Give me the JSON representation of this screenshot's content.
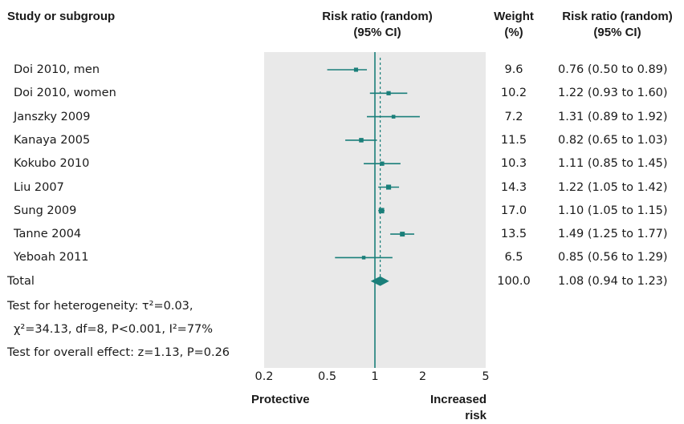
{
  "headers": {
    "study": "Study or subgroup",
    "plot_title_line1": "Risk ratio (random)",
    "plot_title_line2": "(95% CI)",
    "weight_line1": "Weight",
    "weight_line2": "(%)",
    "ci_line1": "Risk ratio (random)",
    "ci_line2": "(95% CI)"
  },
  "stats": {
    "heterogeneity_line1": "Test for heterogeneity: τ²=0.03,",
    "heterogeneity_line2": "χ²=34.13, df=8, P<0.001, I²=77%",
    "overall_effect": "Test for overall effect: z=1.13, P=0.26"
  },
  "direction_labels": {
    "left": "Protective",
    "right_line1": "Increased",
    "right_line2": "risk"
  },
  "colors": {
    "marker": "#1a7f7a",
    "panel_bg": "#e9e9e9",
    "text": "#1a1a1a"
  },
  "chart_data": {
    "type": "forest",
    "scale": "log",
    "xlim": [
      0.2,
      5
    ],
    "xticks": [
      0.2,
      0.5,
      1,
      2,
      5
    ],
    "xtick_labels": [
      "0.2",
      "0.5",
      "1",
      "2",
      "5"
    ],
    "null_value": 1,
    "studies": [
      {
        "name": "Doi 2010, men",
        "rr": 0.76,
        "lo": 0.5,
        "hi": 0.89,
        "weight": "9.6",
        "ci_text": "0.76 (0.50 to 0.89)"
      },
      {
        "name": "Doi 2010, women",
        "rr": 1.22,
        "lo": 0.93,
        "hi": 1.6,
        "weight": "10.2",
        "ci_text": "1.22 (0.93 to 1.60)"
      },
      {
        "name": "Janszky 2009",
        "rr": 1.31,
        "lo": 0.89,
        "hi": 1.92,
        "weight": "7.2",
        "ci_text": "1.31 (0.89 to 1.92)"
      },
      {
        "name": "Kanaya 2005",
        "rr": 0.82,
        "lo": 0.65,
        "hi": 1.03,
        "weight": "11.5",
        "ci_text": "0.82 (0.65 to 1.03)"
      },
      {
        "name": "Kokubo 2010",
        "rr": 1.11,
        "lo": 0.85,
        "hi": 1.45,
        "weight": "10.3",
        "ci_text": "1.11 (0.85 to 1.45)"
      },
      {
        "name": "Liu 2007",
        "rr": 1.22,
        "lo": 1.05,
        "hi": 1.42,
        "weight": "14.3",
        "ci_text": "1.22 (1.05 to 1.42)"
      },
      {
        "name": "Sung 2009",
        "rr": 1.1,
        "lo": 1.05,
        "hi": 1.15,
        "weight": "17.0",
        "ci_text": "1.10 (1.05 to 1.15)"
      },
      {
        "name": "Tanne 2004",
        "rr": 1.49,
        "lo": 1.25,
        "hi": 1.77,
        "weight": "13.5",
        "ci_text": "1.49 (1.25 to 1.77)"
      },
      {
        "name": "Yeboah 2011",
        "rr": 0.85,
        "lo": 0.56,
        "hi": 1.29,
        "weight": "6.5",
        "ci_text": "0.85 (0.56 to 1.29)"
      }
    ],
    "total": {
      "name": "Total",
      "rr": 1.08,
      "lo": 0.94,
      "hi": 1.23,
      "weight": "100.0",
      "ci_text": "1.08 (0.94 to 1.23)"
    }
  }
}
